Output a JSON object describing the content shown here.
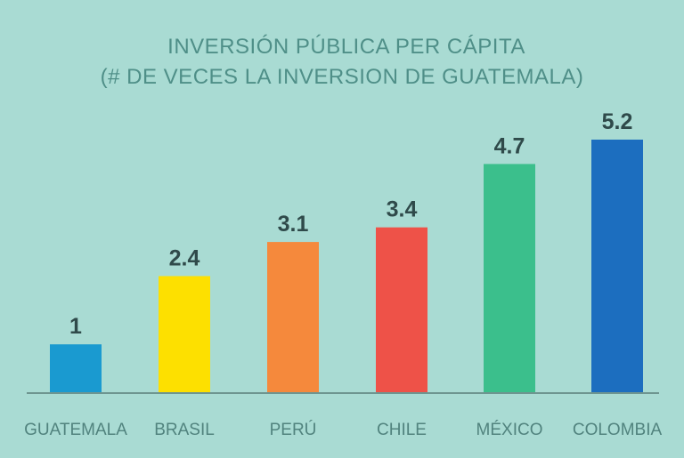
{
  "chart_data": {
    "type": "bar",
    "title_lines": [
      "INVERSIÓN PÚBLICA PER CÁPITA",
      "(# DE VECES LA INVERSION DE GUATEMALA)"
    ],
    "categories": [
      "GUATEMALA",
      "BRASIL",
      "PERÚ",
      "CHILE",
      "MÉXICO",
      "COLOMBIA"
    ],
    "values": [
      1,
      2.4,
      3.1,
      3.4,
      4.7,
      5.2
    ],
    "value_labels": [
      "1",
      "2.4",
      "3.1",
      "3.4",
      "4.7",
      "5.2"
    ],
    "colors": [
      "#1a9ad0",
      "#fde000",
      "#f5893c",
      "#ee5248",
      "#3bbf8c",
      "#1c6ebf"
    ],
    "ylim": [
      0,
      5.2
    ],
    "grid": false,
    "legend": "none",
    "baseline_color": "#6e9590"
  }
}
